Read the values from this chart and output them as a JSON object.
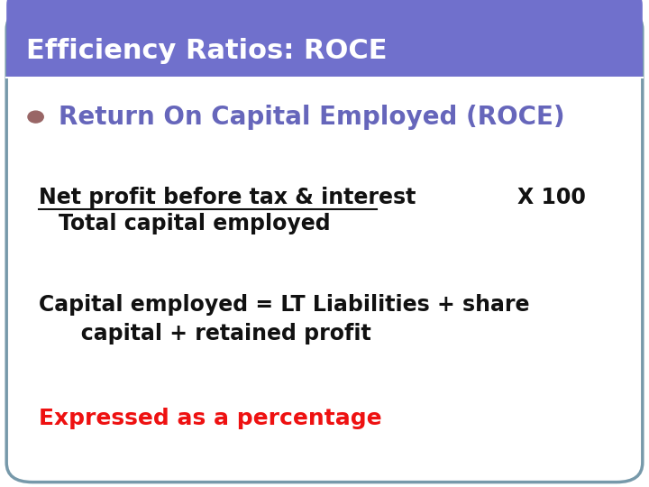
{
  "title": "Efficiency Ratios: ROCE",
  "title_bg_color": "#7070CC",
  "title_text_color": "#FFFFFF",
  "slide_bg_color": "#FFFFFF",
  "border_color": "#7799AA",
  "bullet_color": "#996666",
  "bullet_text_color": "#6666BB",
  "line1_numerator": "Net profit before tax & interest",
  "line1_x100": "X 100",
  "line1_denominator": "Total capital employed",
  "line2a": "Capital employed = LT Liabilities + share",
  "line2b": "   capital + retained profit",
  "line3": "Expressed as a percentage",
  "line3_color": "#EE1111",
  "body_text_color": "#111111",
  "font_size_title": 22,
  "font_size_bullet": 20,
  "font_size_body": 17,
  "font_size_line3": 18
}
